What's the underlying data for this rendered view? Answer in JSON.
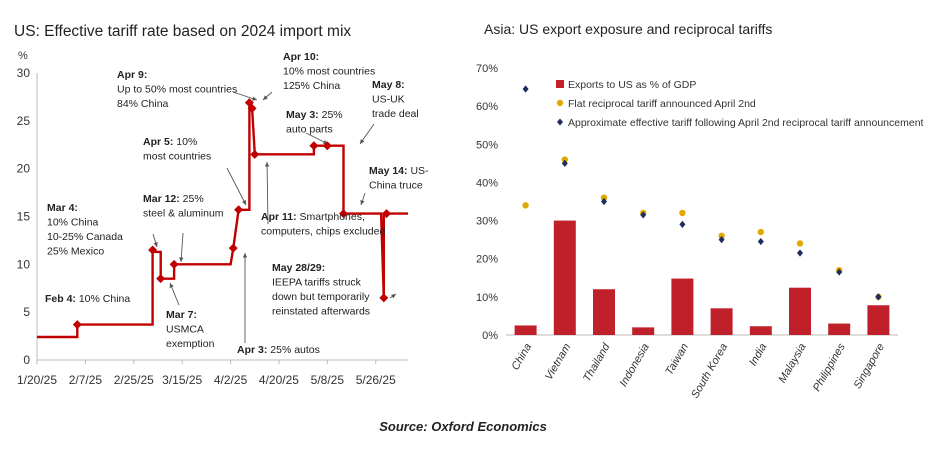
{
  "source": "Source: Oxford Economics",
  "chart_data": [
    {
      "type": "line",
      "title": "US: Effective tariff rate based on 2024 import mix",
      "ylabel": "%",
      "ylim": [
        0,
        30
      ],
      "yticks": [
        "0",
        "5",
        "10",
        "15",
        "20",
        "25",
        "30"
      ],
      "xlim": [
        "2025-01-20",
        "2025-06-07"
      ],
      "xticks": [
        "1/20/25",
        "2/7/25",
        "2/25/25",
        "3/15/25",
        "4/2/25",
        "4/20/25",
        "5/8/25",
        "5/26/25"
      ],
      "color": "#c00000",
      "series": [
        {
          "name": "Effective tariff rate",
          "points": [
            [
              "2025-01-20",
              2.4
            ],
            [
              "2025-02-04",
              2.4
            ],
            [
              "2025-02-04",
              3.7
            ],
            [
              "2025-03-04",
              3.7
            ],
            [
              "2025-03-04",
              11.5
            ],
            [
              "2025-03-05",
              11.3
            ],
            [
              "2025-03-07",
              11.3
            ],
            [
              "2025-03-07",
              8.5
            ],
            [
              "2025-03-12",
              8.5
            ],
            [
              "2025-03-12",
              10.0
            ],
            [
              "2025-04-02",
              10.0
            ],
            [
              "2025-04-03",
              11.7
            ],
            [
              "2025-04-05",
              15.7
            ],
            [
              "2025-04-09",
              15.7
            ],
            [
              "2025-04-09",
              26.9
            ],
            [
              "2025-04-10",
              26.3
            ],
            [
              "2025-04-11",
              21.5
            ],
            [
              "2025-05-03",
              21.5
            ],
            [
              "2025-05-03",
              22.4
            ],
            [
              "2025-05-14",
              22.4
            ],
            [
              "2025-05-14",
              15.3
            ],
            [
              "2025-05-28",
              15.3
            ],
            [
              "2025-05-29",
              6.5
            ],
            [
              "2025-05-29",
              15.3
            ],
            [
              "2025-06-07",
              15.3
            ]
          ],
          "markers": [
            [
              "2025-02-04",
              3.7
            ],
            [
              "2025-03-04",
              11.5
            ],
            [
              "2025-03-07",
              8.5
            ],
            [
              "2025-03-12",
              10.0
            ],
            [
              "2025-04-03",
              11.7
            ],
            [
              "2025-04-05",
              15.7
            ],
            [
              "2025-04-09",
              26.9
            ],
            [
              "2025-04-10",
              26.3
            ],
            [
              "2025-04-11",
              21.5
            ],
            [
              "2025-05-03",
              22.4
            ],
            [
              "2025-05-08",
              22.4
            ],
            [
              "2025-05-14",
              15.3
            ],
            [
              "2025-05-29",
              6.5
            ],
            [
              "2025-05-30",
              15.3
            ]
          ]
        }
      ],
      "annotations": [
        {
          "bold": "Feb 4:",
          "text": " 10% China",
          "lines": []
        },
        {
          "bold": "Mar 4:",
          "text": "",
          "lines": [
            "10% China",
            "10-25% Canada",
            "25% Mexico"
          ]
        },
        {
          "bold": "Mar 7:",
          "text": "",
          "lines": [
            "USMCA",
            "exemption"
          ]
        },
        {
          "bold": "Mar 12:",
          "text": " 25%",
          "lines": [
            "steel & aluminum"
          ]
        },
        {
          "bold": "Apr 3:",
          "text": " 25% autos",
          "lines": []
        },
        {
          "bold": "Apr 5:",
          "text": " 10%",
          "lines": [
            "most countries"
          ]
        },
        {
          "bold": "Apr 9:",
          "text": "",
          "lines": [
            "Up to 50% most countries",
            "84% China"
          ]
        },
        {
          "bold": "Apr 10:",
          "text": "",
          "lines": [
            "10% most countries",
            "125% China"
          ]
        },
        {
          "bold": "Apr 11:",
          "text": " Smartphones,",
          "lines": [
            "computers, chips excluded"
          ]
        },
        {
          "bold": "May 3:",
          "text": " 25%",
          "lines": [
            "auto parts"
          ]
        },
        {
          "bold": "May 8:",
          "text": "",
          "lines": [
            "US-UK",
            "trade deal"
          ]
        },
        {
          "bold": "May 14:",
          "text": " US-",
          "lines": [
            "China truce"
          ]
        },
        {
          "bold": "May 28/29:",
          "text": "",
          "lines": [
            "IEEPA tariffs struck",
            "down but temporarily",
            "reinstated afterwards"
          ]
        }
      ]
    },
    {
      "type": "bar",
      "title": "Asia: US export exposure and reciprocal tariffs",
      "ylim": [
        0,
        70
      ],
      "yticks": [
        "0%",
        "10%",
        "20%",
        "30%",
        "40%",
        "50%",
        "60%",
        "70%"
      ],
      "categories": [
        "China",
        "Vietnam",
        "Thailand",
        "Indonesia",
        "Taiwan",
        "South Korea",
        "India",
        "Malaysia",
        "Philippines",
        "Singapore"
      ],
      "series": [
        {
          "name": "Exports to US as % of GDP",
          "kind": "bar",
          "color": "#c0202a",
          "values": [
            2.5,
            30.0,
            12.0,
            2.0,
            14.8,
            7.0,
            2.3,
            12.4,
            3.0,
            7.8
          ]
        },
        {
          "name": "Flat reciprocal tariff announced April 2nd",
          "kind": "dot",
          "color": "#e0a800",
          "values": [
            34.0,
            46.0,
            36.0,
            32.0,
            32.0,
            26.0,
            27.0,
            24.0,
            17.0,
            10.0
          ]
        },
        {
          "name": "Approximate effective tariff following April 2nd reciprocal tariff announcement",
          "kind": "diamond",
          "color": "#1f2d5c",
          "values": [
            64.5,
            45.0,
            35.0,
            31.5,
            29.0,
            25.0,
            24.5,
            21.5,
            16.5,
            10.0
          ]
        }
      ]
    }
  ]
}
